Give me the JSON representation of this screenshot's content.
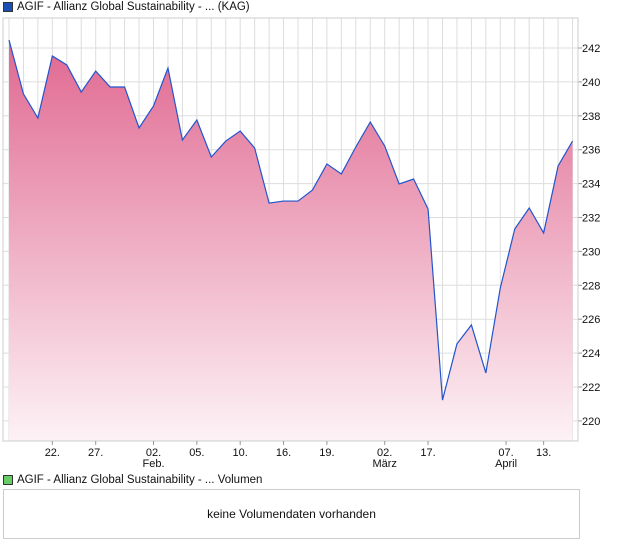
{
  "legend_price": "AGIF - Allianz Global Sustainability - ... (KAG)",
  "legend_volume": "AGIF - Allianz Global Sustainability - ... Volumen",
  "volume_message": "keine Volumendaten vorhanden",
  "colors": {
    "price_line": "#2255cc",
    "fill_top": "#e06890",
    "fill_bottom": "#fdf2f6",
    "legend_price": "#1a4fb5",
    "legend_volume": "#66cc66"
  },
  "chart_data": {
    "type": "area",
    "title": "",
    "xlabel": "",
    "ylabel": "",
    "ylim": [
      219,
      243
    ],
    "yticks": [
      220,
      222,
      224,
      226,
      228,
      230,
      232,
      234,
      236,
      238,
      240,
      242
    ],
    "grid": true,
    "values": [
      242.47,
      239.29,
      237.87,
      241.53,
      241.0,
      239.4,
      240.64,
      239.7,
      239.7,
      237.28,
      238.58,
      240.82,
      236.57,
      237.75,
      235.57,
      236.51,
      237.1,
      236.1,
      232.85,
      232.97,
      232.97,
      233.62,
      235.16,
      234.57,
      236.16,
      237.63,
      236.22,
      233.98,
      234.27,
      232.5,
      221.23,
      224.54,
      225.66,
      222.83,
      227.84,
      231.32,
      232.56,
      231.09,
      235.04,
      236.51
    ],
    "xticks": [
      {
        "index": 3,
        "label": "22.",
        "sub": ""
      },
      {
        "index": 6,
        "label": "27.",
        "sub": ""
      },
      {
        "index": 10,
        "label": "02.",
        "sub": "Feb."
      },
      {
        "index": 13,
        "label": "05.",
        "sub": ""
      },
      {
        "index": 16,
        "label": "10.",
        "sub": ""
      },
      {
        "index": 19,
        "label": "16.",
        "sub": ""
      },
      {
        "index": 22,
        "label": "19.",
        "sub": ""
      },
      {
        "index": 26,
        "label": "02.",
        "sub": "März"
      },
      {
        "index": 29,
        "label": "17.",
        "sub": ""
      },
      {
        "index": 34.4,
        "label": "07.",
        "sub": "April"
      },
      {
        "index": 37,
        "label": "13.",
        "sub": ""
      }
    ]
  }
}
